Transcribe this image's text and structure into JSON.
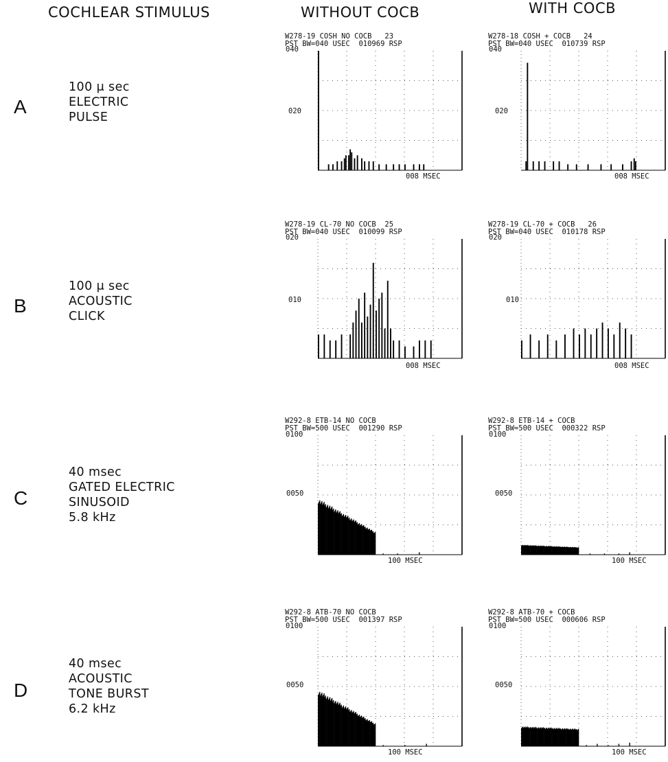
{
  "headers": {
    "stimulus": "COCHLEAR STIMULUS",
    "without": "WITHOUT COCB",
    "with": "WITH COCB"
  },
  "rows": [
    {
      "letter": "A",
      "stim": [
        "100 μ sec",
        "ELECTRIC",
        "PULSE"
      ]
    },
    {
      "letter": "B",
      "stim": [
        "100 μ sec",
        "ACOUSTIC",
        "CLICK"
      ]
    },
    {
      "letter": "C",
      "stim": [
        "40 msec",
        "GATED ELECTRIC",
        "SINUSOID",
        "5.8 kHz"
      ]
    },
    {
      "letter": "D",
      "stim": [
        "40 msec",
        "ACOUSTIC",
        "TONE BURST",
        "6.2 kHz"
      ]
    }
  ],
  "chart_data": [
    {
      "type": "bar",
      "row": "A",
      "col": "without",
      "header1": "W278-19 COSH NO COCB   23",
      "header2": "PST BW=040 USEC  010969 RSP",
      "ytop": "040",
      "ymid": "020",
      "xlabel": "008 MSEC",
      "ylim": [
        0,
        40
      ],
      "bins": 100,
      "values_sparse": {
        "0": 40,
        "7": 2,
        "10": 2,
        "13": 3,
        "16": 3,
        "18": 4,
        "19": 5,
        "21": 5,
        "22": 7,
        "23": 6,
        "25": 4,
        "27": 5,
        "30": 4,
        "32": 3,
        "35": 3,
        "38": 3,
        "42": 2,
        "47": 2,
        "52": 2,
        "56": 2,
        "60": 2,
        "66": 2,
        "70": 2,
        "73": 2
      }
    },
    {
      "type": "bar",
      "row": "A",
      "col": "with",
      "header1": "W278-18 COSH + COCB   24",
      "header2": "PST BW=040 USEC  010739 RSP",
      "ytop": "040",
      "ymid": "020",
      "xlabel": "008 MSEC",
      "ylim": [
        0,
        40
      ],
      "bins": 100,
      "values_sparse": {
        "3": 3,
        "4": 36,
        "8": 3,
        "12": 3,
        "16": 3,
        "22": 3,
        "26": 3,
        "32": 2,
        "38": 2,
        "46": 2,
        "55": 2,
        "62": 2,
        "70": 2,
        "76": 3,
        "78": 4,
        "79": 3
      }
    },
    {
      "type": "bar",
      "row": "B",
      "col": "without",
      "header1": "W278-19 CL-70 NO COCB  25",
      "header2": "PST BW=040 USEC  010099 RSP",
      "ytop": "020",
      "ymid": "010",
      "xlabel": "008 MSEC",
      "ylim": [
        0,
        20
      ],
      "bins": 100,
      "values_sparse": {
        "0": 4,
        "4": 4,
        "8": 3,
        "12": 3,
        "16": 4,
        "22": 4,
        "24": 6,
        "26": 8,
        "28": 10,
        "30": 6,
        "32": 11,
        "34": 7,
        "36": 9,
        "38": 16,
        "40": 8,
        "42": 10,
        "44": 11,
        "46": 5,
        "48": 13,
        "50": 5,
        "52": 3,
        "56": 3,
        "60": 2,
        "66": 2,
        "70": 3,
        "74": 3,
        "78": 3
      }
    },
    {
      "type": "bar",
      "row": "B",
      "col": "with",
      "header1": "W278-19 CL-70 + COCB   26",
      "header2": "PST BW=040 USEC  010178 RSP",
      "ytop": "020",
      "ymid": "010",
      "xlabel": "008 MSEC",
      "ylim": [
        0,
        20
      ],
      "bins": 100,
      "values_sparse": {
        "0": 3,
        "6": 4,
        "12": 3,
        "18": 4,
        "24": 3,
        "30": 4,
        "36": 5,
        "40": 4,
        "44": 5,
        "48": 4,
        "52": 5,
        "56": 6,
        "60": 5,
        "64": 4,
        "68": 6,
        "72": 5,
        "76": 4
      }
    },
    {
      "type": "area",
      "row": "C",
      "col": "without",
      "header1": "W292-8 ETB-14 NO COCB",
      "header2": "PST BW=500 USEC  001290 RSP",
      "ytop": "0100",
      "ymid": "0050",
      "xlabel": "100 MSEC",
      "ylim": [
        0,
        100
      ],
      "bins": 200,
      "segments": [
        {
          "from": 0,
          "to": 80,
          "start": 45,
          "end": 18
        }
      ],
      "scatter": {
        "90": 1,
        "110": 1,
        "140": 2
      }
    },
    {
      "type": "area",
      "row": "C",
      "col": "with",
      "header1": "W292-8 ETB-14 + COCB",
      "header2": "PST BW=500 USEC  000322 RSP",
      "ytop": "0100",
      "ymid": "0050",
      "xlabel": "100 MSEC",
      "ylim": [
        0,
        100
      ],
      "bins": 200,
      "segments": [
        {
          "from": 0,
          "to": 80,
          "start": 8,
          "end": 6
        }
      ],
      "scatter": {
        "95": 1,
        "115": 1,
        "135": 1,
        "150": 2
      }
    },
    {
      "type": "area",
      "row": "D",
      "col": "without",
      "header1": "W292-8 ATB-70 NO COCB",
      "header2": "PST BW=500 USEC  001397 RSP",
      "ytop": "0100",
      "ymid": "0050",
      "xlabel": "100 MSEC",
      "ylim": [
        0,
        100
      ],
      "bins": 200,
      "segments": [
        {
          "from": 0,
          "to": 80,
          "start": 45,
          "end": 18
        }
      ],
      "scatter": {
        "90": 1,
        "120": 1,
        "150": 2
      }
    },
    {
      "type": "area",
      "row": "D",
      "col": "with",
      "header1": "W292-8 ATB-70 + COCB",
      "header2": "PST BW=500 USEC  000606 RSP",
      "ytop": "0100",
      "ymid": "0050",
      "xlabel": "100 MSEC",
      "ylim": [
        0,
        100
      ],
      "bins": 200,
      "segments": [
        {
          "from": 0,
          "to": 80,
          "start": 16,
          "end": 14
        }
      ],
      "scatter": {
        "90": 1,
        "105": 2,
        "120": 1,
        "135": 2,
        "150": 3
      }
    }
  ]
}
